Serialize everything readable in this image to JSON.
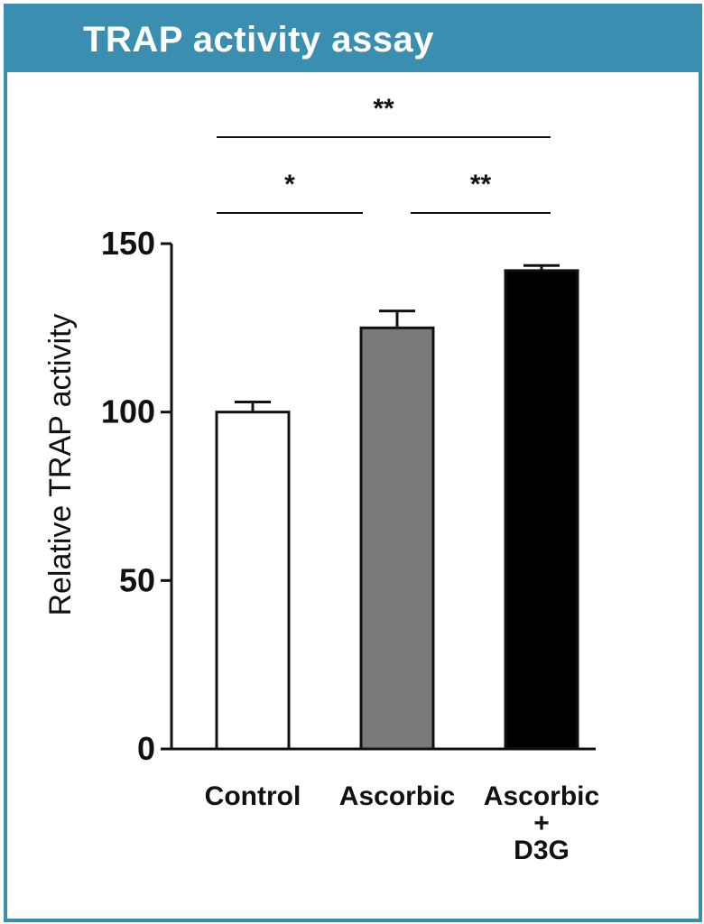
{
  "header": {
    "title": "TRAP activity assay"
  },
  "colors": {
    "header_bg": "#3a8fb0",
    "frame_border": "#3a8fb0"
  },
  "chart_data": {
    "type": "bar",
    "categories": [
      {
        "lines": [
          "Control"
        ],
        "color": "#ffffff"
      },
      {
        "lines": [
          "Ascorbic"
        ],
        "color": "#7a7a7a"
      },
      {
        "lines": [
          "Ascorbic",
          "+",
          "D3G"
        ],
        "color": "#000000"
      }
    ],
    "values": [
      100,
      125,
      142
    ],
    "errors": [
      3,
      5,
      1.5
    ],
    "ylabel": "Relative TRAP activity",
    "xlabel": "",
    "ylim": [
      0,
      150
    ],
    "yticks": [
      0,
      50,
      100,
      150
    ],
    "grid": false,
    "significance": [
      {
        "from": 0,
        "to": 1,
        "label": "*"
      },
      {
        "from": 1,
        "to": 2,
        "label": "**"
      },
      {
        "from": 0,
        "to": 2,
        "label": "**"
      }
    ]
  }
}
